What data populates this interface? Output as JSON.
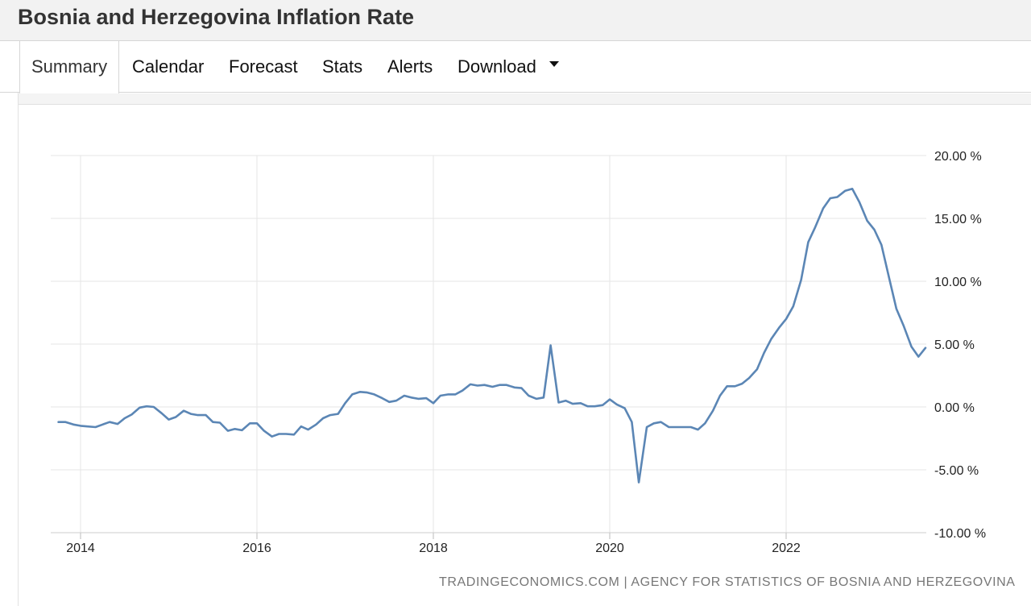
{
  "page": {
    "title": "Bosnia and Herzegovina Inflation Rate"
  },
  "tabs": [
    {
      "label": "Summary",
      "active": true
    },
    {
      "label": "Calendar"
    },
    {
      "label": "Forecast"
    },
    {
      "label": "Stats"
    },
    {
      "label": "Alerts"
    },
    {
      "label": "Download",
      "icon": "caret-down-icon"
    }
  ],
  "attribution": "TRADINGECONOMICS.COM | AGENCY FOR STATISTICS OF BOSNIA AND HERZEGOVINA",
  "colors": {
    "line": "#5b86b5",
    "grid": "#e6e6e6",
    "axis_text": "#222222"
  },
  "chart_data": {
    "type": "line",
    "grid": true,
    "y_axis_position": "right",
    "ylim": [
      -10,
      20
    ],
    "y_ticks": [
      20,
      15,
      10,
      5,
      0,
      -5,
      -10
    ],
    "y_tick_labels": [
      "20.00 %",
      "15.00 %",
      "10.00 %",
      "5.00 %",
      "0.00 %",
      "-5.00 %",
      "-10.00 %"
    ],
    "x_ticks": [
      2014,
      2016,
      2018,
      2020,
      2022
    ],
    "x_tick_labels": [
      "2014",
      "2016",
      "2018",
      "2020",
      "2022"
    ],
    "series": [
      {
        "x": [
          2013.75,
          2013.83,
          2013.92,
          2014.0,
          2014.08,
          2014.17,
          2014.25,
          2014.33,
          2014.42,
          2014.5,
          2014.58,
          2014.67,
          2014.75,
          2014.83,
          2014.92,
          2015.0,
          2015.08,
          2015.17,
          2015.25,
          2015.33,
          2015.42,
          2015.5,
          2015.58,
          2015.67,
          2015.75,
          2015.83,
          2015.92,
          2016.0,
          2016.08,
          2016.17,
          2016.25,
          2016.33,
          2016.42,
          2016.5,
          2016.58,
          2016.67,
          2016.75,
          2016.83,
          2016.92,
          2017.0,
          2017.08,
          2017.17,
          2017.25,
          2017.33,
          2017.42,
          2017.5,
          2017.58,
          2017.67,
          2017.75,
          2017.83,
          2017.92,
          2018.0,
          2018.08,
          2018.17,
          2018.25,
          2018.33,
          2018.42,
          2018.5,
          2018.58,
          2018.67,
          2018.75,
          2018.83,
          2018.92,
          2019.0,
          2019.08,
          2019.17,
          2019.25,
          2019.33,
          2019.42,
          2019.5,
          2019.58,
          2019.67,
          2019.75,
          2019.83,
          2019.92,
          2020.0,
          2020.08,
          2020.17,
          2020.25,
          2020.33,
          2020.42,
          2020.5,
          2020.58,
          2020.67,
          2020.75,
          2020.83,
          2020.92,
          2021.0,
          2021.08,
          2021.17,
          2021.25,
          2021.33,
          2021.42,
          2021.5,
          2021.58,
          2021.67,
          2021.75,
          2021.83,
          2021.92,
          2022.0,
          2022.08,
          2022.17,
          2022.25,
          2022.33,
          2022.42,
          2022.5,
          2022.58,
          2022.67,
          2022.75,
          2022.83,
          2022.92,
          2023.0,
          2023.08,
          2023.17,
          2023.25,
          2023.33,
          2023.42,
          2023.5,
          2023.58
        ],
        "values": [
          -1.2,
          -1.2,
          -1.4,
          -1.5,
          -1.55,
          -1.6,
          -1.4,
          -1.2,
          -1.35,
          -0.9,
          -0.6,
          -0.05,
          0.05,
          0.0,
          -0.5,
          -1.0,
          -0.8,
          -0.3,
          -0.55,
          -0.65,
          -0.65,
          -1.2,
          -1.25,
          -1.9,
          -1.75,
          -1.85,
          -1.3,
          -1.3,
          -1.9,
          -2.35,
          -2.15,
          -2.15,
          -2.2,
          -1.55,
          -1.8,
          -1.4,
          -0.9,
          -0.65,
          -0.55,
          0.3,
          1.0,
          1.2,
          1.15,
          1.0,
          0.7,
          0.4,
          0.5,
          0.9,
          0.75,
          0.65,
          0.7,
          0.3,
          0.9,
          1.0,
          1.0,
          1.3,
          1.8,
          1.7,
          1.75,
          1.6,
          1.75,
          1.75,
          1.55,
          1.5,
          0.9,
          0.65,
          0.75,
          4.9,
          0.35,
          0.5,
          0.25,
          0.3,
          0.05,
          0.05,
          0.15,
          0.6,
          0.2,
          -0.1,
          -1.2,
          -6.0,
          -1.6,
          -1.3,
          -1.2,
          -1.6,
          -1.6,
          -1.6,
          -1.6,
          -1.8,
          -1.3,
          -0.3,
          0.9,
          1.65,
          1.65,
          1.85,
          2.3,
          3.0,
          4.3,
          5.4,
          6.3,
          7.0,
          8.0,
          10.1,
          13.1,
          14.3,
          15.8,
          16.6,
          16.7,
          17.2,
          17.35,
          16.3,
          14.8,
          14.1,
          12.9,
          10.2,
          7.8,
          6.5,
          4.8,
          4.0,
          4.7
        ]
      }
    ]
  }
}
